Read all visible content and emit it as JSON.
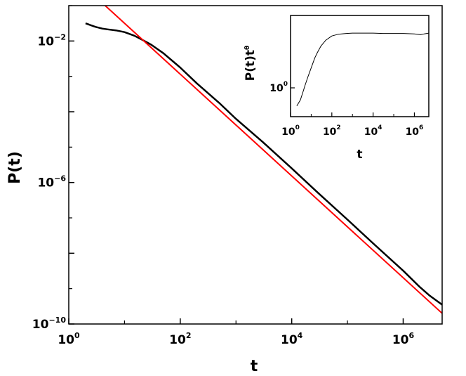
{
  "chart_data": [
    {
      "id": "main",
      "type": "line",
      "xscale": "log",
      "yscale": "log",
      "xlabel": "t",
      "ylabel": "P(t)",
      "xlim": [
        1,
        5000000
      ],
      "ylim": [
        1e-10,
        0.1
      ],
      "xticks": [
        {
          "base": "10",
          "exp": "0",
          "value": 1
        },
        {
          "base": "10",
          "exp": "2",
          "value": 100
        },
        {
          "base": "10",
          "exp": "4",
          "value": 10000
        },
        {
          "base": "10",
          "exp": "6",
          "value": 1000000
        }
      ],
      "yticks": [
        {
          "base": "10",
          "exp": "−10",
          "value": 1e-10
        },
        {
          "base": "10",
          "exp": "−6",
          "value": 1e-06
        },
        {
          "base": "10",
          "exp": "−2",
          "value": 0.01
        }
      ],
      "grid": false,
      "series": [
        {
          "kind": "data",
          "color": "#000000",
          "x": [
            2,
            3,
            4,
            5,
            7,
            10,
            15,
            20,
            30,
            50,
            100,
            200,
            500,
            1000,
            3000,
            10000,
            30000,
            100000,
            300000,
            1000000,
            2000000,
            3000000,
            5000000
          ],
          "y": [
            0.0316,
            0.0251,
            0.0224,
            0.0213,
            0.02,
            0.0178,
            0.0141,
            0.0112,
            0.0079,
            0.0045,
            0.00178,
            0.00063,
            0.000178,
            6.3e-05,
            1.41e-05,
            2.5e-06,
            5e-07,
            8.9e-08,
            1.8e-08,
            3.2e-09,
            1.1e-09,
            6.3e-10,
            3.5e-10
          ]
        },
        {
          "kind": "fit",
          "color": "#ff0000",
          "x": [
            4.5,
            5000000
          ],
          "y": [
            0.1,
            2e-10
          ]
        }
      ]
    },
    {
      "id": "inset",
      "type": "line",
      "xscale": "log",
      "yscale": "log",
      "xlabel": "t",
      "ylabel": {
        "text": "P(t)t",
        "sup": "θ"
      },
      "xlim": [
        1,
        5000000
      ],
      "yticks": [
        {
          "base": "10",
          "exp": "0",
          "value": 1
        }
      ],
      "xticks": [
        {
          "base": "10",
          "exp": "0",
          "value": 1
        },
        {
          "base": "10",
          "exp": "2",
          "value": 100
        },
        {
          "base": "10",
          "exp": "4",
          "value": 10000
        },
        {
          "base": "10",
          "exp": "6",
          "value": 1000000
        }
      ],
      "grid": false,
      "series": [
        {
          "kind": "data",
          "color": "#000000",
          "x": [
            2,
            3,
            4,
            5,
            7,
            10,
            15,
            20,
            30,
            50,
            100,
            200,
            500,
            1000,
            3000,
            10000,
            30000,
            100000,
            300000,
            1000000,
            2000000,
            3000000,
            5000000
          ],
          "y": [
            0.8,
            0.86,
            0.95,
            1.03,
            1.15,
            1.28,
            1.45,
            1.55,
            1.68,
            1.8,
            1.9,
            1.94,
            1.96,
            1.97,
            1.97,
            1.97,
            1.96,
            1.96,
            1.96,
            1.95,
            1.93,
            1.95,
            1.97
          ]
        }
      ]
    }
  ]
}
